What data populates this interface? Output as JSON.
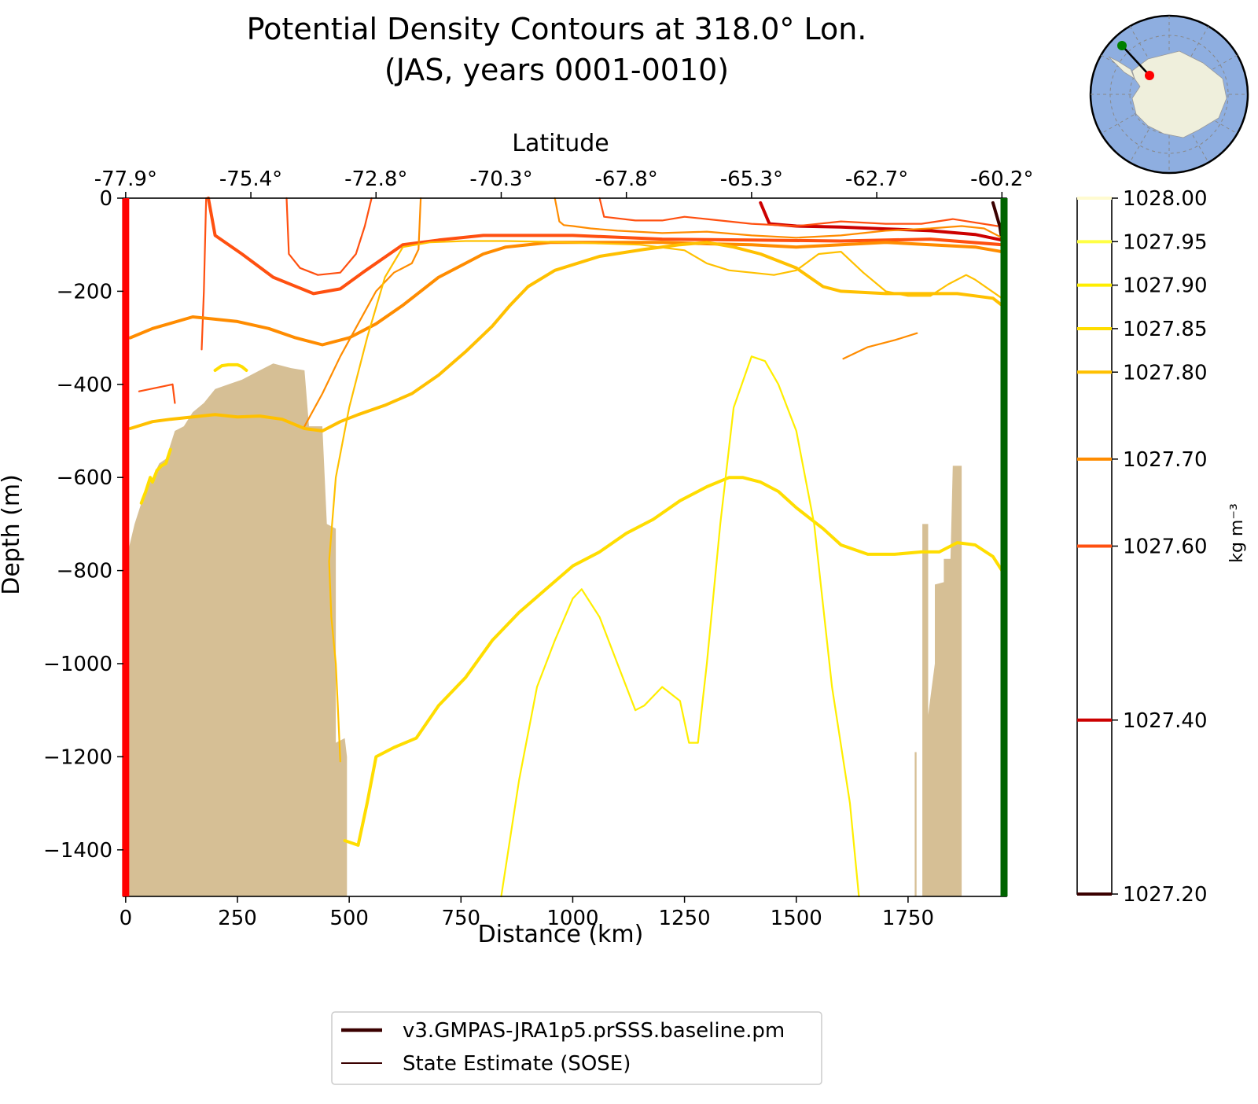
{
  "chart_data": {
    "type": "line",
    "title_line1": "Potential Density Contours at 318.0° Lon.",
    "title_line2": "(JAS, years 0001-0010)",
    "xlabel": "Distance (km)",
    "ylabel": "Depth (m)",
    "top_axis_label": "Latitude",
    "xlim": [
      -5,
      1970
    ],
    "ylim": [
      -1500,
      0
    ],
    "x_ticks": [
      0,
      250,
      500,
      750,
      1000,
      1250,
      1500,
      1750
    ],
    "x_tick_labels": [
      "0",
      "250",
      "500",
      "750",
      "1000",
      "1250",
      "1500",
      "1750"
    ],
    "y_ticks": [
      0,
      -200,
      -400,
      -600,
      -800,
      -1000,
      -1200,
      -1400
    ],
    "y_tick_labels": [
      "0",
      "−200",
      "−400",
      "−600",
      "−800",
      "−1000",
      "−1200",
      "−1400"
    ],
    "lat_ticks": [
      0,
      280,
      560,
      840,
      1120,
      1400,
      1680,
      1960
    ],
    "lat_tick_labels": [
      "-77.9°",
      "-75.4°",
      "-72.8°",
      "-70.3°",
      "-67.8°",
      "-65.3°",
      "-62.7°",
      "-60.2°"
    ],
    "colorbar": {
      "label": "kg m⁻³",
      "range": [
        1027.2,
        1028.0
      ],
      "levels": [
        {
          "value": 1028.0,
          "label": "1028.00",
          "color": "#fffbd0"
        },
        {
          "value": 1027.95,
          "label": "1027.95",
          "color": "#ffff44"
        },
        {
          "value": 1027.9,
          "label": "1027.90",
          "color": "#ffee00"
        },
        {
          "value": 1027.85,
          "label": "1027.85",
          "color": "#ffdd00"
        },
        {
          "value": 1027.8,
          "label": "1027.80",
          "color": "#ffc000"
        },
        {
          "value": 1027.7,
          "label": "1027.70",
          "color": "#ff8c00"
        },
        {
          "value": 1027.6,
          "label": "1027.60",
          "color": "#ff5010"
        },
        {
          "value": 1027.4,
          "label": "1027.40",
          "color": "#cc0000"
        },
        {
          "value": 1027.2,
          "label": "1027.20",
          "color": "#3a0000"
        }
      ]
    },
    "legend": {
      "placement": "below",
      "entries": [
        {
          "label": "v3.GMPAS-JRA1p5.prSSS.baseline.pm",
          "color": "#3a0000",
          "style": "thick"
        },
        {
          "label": "State Estimate (SOSE)",
          "color": "#3a0000",
          "style": "thin"
        }
      ]
    },
    "section_endpoints": {
      "start_color": "#ff0000",
      "end_color": "#006400"
    },
    "bathymetry": {
      "color": "#d6bf95",
      "left_mass": [
        [
          5,
          -1500
        ],
        [
          5,
          -760
        ],
        [
          20,
          -700
        ],
        [
          40,
          -640
        ],
        [
          60,
          -600
        ],
        [
          75,
          -570
        ],
        [
          90,
          -560
        ],
        [
          110,
          -500
        ],
        [
          130,
          -490
        ],
        [
          150,
          -460
        ],
        [
          175,
          -440
        ],
        [
          200,
          -410
        ],
        [
          230,
          -400
        ],
        [
          260,
          -390
        ],
        [
          300,
          -370
        ],
        [
          330,
          -355
        ],
        [
          370,
          -365
        ],
        [
          400,
          -370
        ],
        [
          410,
          -490
        ],
        [
          440,
          -490
        ],
        [
          450,
          -700
        ],
        [
          470,
          -710
        ],
        [
          470,
          -1170
        ],
        [
          490,
          -1160
        ],
        [
          495,
          -1200
        ],
        [
          495,
          -1500
        ]
      ],
      "right_mass": [
        [
          1782,
          -1500
        ],
        [
          1782,
          -700
        ],
        [
          1795,
          -700
        ],
        [
          1795,
          -1110
        ],
        [
          1810,
          -1000
        ],
        [
          1810,
          -830
        ],
        [
          1830,
          -825
        ],
        [
          1830,
          -775
        ],
        [
          1845,
          -775
        ],
        [
          1850,
          -575
        ],
        [
          1870,
          -575
        ],
        [
          1870,
          -1500
        ]
      ],
      "right_spike": [
        [
          1765,
          -1500
        ],
        [
          1765,
          -1190
        ],
        [
          1769,
          -1190
        ],
        [
          1769,
          -1500
        ]
      ]
    },
    "series": [
      {
        "value": 1027.2,
        "kind": "model",
        "x": [
          1940,
          1955,
          1960
        ],
        "y": [
          -10,
          -60,
          -90
        ]
      },
      {
        "value": 1027.4,
        "kind": "model",
        "x": [
          1420,
          1440,
          1500,
          1600,
          1700,
          1800,
          1900,
          1960
        ],
        "y": [
          -10,
          -55,
          -60,
          -62,
          -66,
          -70,
          -78,
          -90
        ]
      },
      {
        "value": 1027.6,
        "kind": "model",
        "x": [
          185,
          200,
          260,
          330,
          420,
          480,
          530,
          620,
          700,
          800,
          1000,
          1200,
          1400,
          1600,
          1800,
          1960
        ],
        "y": [
          0,
          -80,
          -120,
          -170,
          -205,
          -195,
          -160,
          -100,
          -90,
          -80,
          -80,
          -88,
          -90,
          -92,
          -88,
          -100
        ]
      },
      {
        "value": 1027.6,
        "kind": "sose",
        "x": [
          180,
          175,
          170
        ],
        "y": [
          0,
          -200,
          -325
        ]
      },
      {
        "value": 1027.6,
        "kind": "sose",
        "x": [
          30,
          80,
          105,
          110
        ],
        "y": [
          -415,
          -405,
          -400,
          -440
        ]
      },
      {
        "value": 1027.6,
        "kind": "sose",
        "x": [
          360,
          365,
          390,
          430,
          480,
          515,
          535,
          550
        ],
        "y": [
          0,
          -120,
          -150,
          -165,
          -160,
          -120,
          -60,
          0
        ]
      },
      {
        "value": 1027.6,
        "kind": "sose",
        "x": [
          1060,
          1070,
          1140,
          1200,
          1250,
          1300,
          1400,
          1500,
          1550,
          1600,
          1700,
          1780,
          1850,
          1950
        ],
        "y": [
          0,
          -40,
          -48,
          -48,
          -40,
          -45,
          -55,
          -60,
          -55,
          -50,
          -55,
          -55,
          -45,
          -60
        ]
      },
      {
        "value": 1027.7,
        "kind": "model",
        "x": [
          10,
          60,
          150,
          250,
          320,
          380,
          440,
          500,
          560,
          620,
          700,
          760,
          800,
          850,
          950,
          1050,
          1200,
          1300,
          1400,
          1500,
          1600,
          1700,
          1800,
          1900,
          1960
        ],
        "y": [
          -300,
          -280,
          -255,
          -265,
          -280,
          -300,
          -315,
          -300,
          -270,
          -230,
          -170,
          -140,
          -120,
          -105,
          -95,
          -95,
          -95,
          -98,
          -100,
          -105,
          -100,
          -95,
          -100,
          -105,
          -115
        ]
      },
      {
        "value": 1027.7,
        "kind": "sose",
        "x": [
          1770,
          1720,
          1660,
          1605
        ],
        "y": [
          -290,
          -305,
          -320,
          -345
        ]
      },
      {
        "value": 1027.7,
        "kind": "sose",
        "x": [
          660,
          655,
          640,
          600,
          560,
          520,
          480,
          440,
          400
        ],
        "y": [
          0,
          -110,
          -140,
          -160,
          -200,
          -270,
          -340,
          -420,
          -490
        ]
      },
      {
        "value": 1027.7,
        "kind": "sose",
        "x": [
          960,
          970,
          980,
          1000,
          1040,
          1100,
          1200,
          1300,
          1400,
          1500,
          1600,
          1700,
          1800,
          1870,
          1920,
          1960
        ],
        "y": [
          0,
          -50,
          -58,
          -60,
          -65,
          -70,
          -75,
          -72,
          -80,
          -85,
          -80,
          -70,
          -65,
          -60,
          -65,
          -85
        ]
      },
      {
        "value": 1027.8,
        "kind": "model",
        "x": [
          10,
          60,
          100,
          150,
          200,
          250,
          300,
          350,
          400,
          440,
          480,
          520,
          580,
          640,
          700,
          760,
          820,
          860,
          900,
          960,
          1060,
          1160,
          1240,
          1300,
          1360,
          1420,
          1500,
          1560,
          1600,
          1700,
          1800,
          1860,
          1900,
          1940,
          1960
        ],
        "y": [
          -495,
          -480,
          -475,
          -470,
          -465,
          -470,
          -468,
          -475,
          -495,
          -500,
          -480,
          -465,
          -445,
          -420,
          -380,
          -330,
          -275,
          -230,
          -190,
          -155,
          -125,
          -110,
          -100,
          -95,
          -105,
          -120,
          -150,
          -190,
          -200,
          -205,
          -205,
          -205,
          -210,
          -215,
          -230
        ]
      },
      {
        "value": 1027.8,
        "kind": "sose",
        "x": [
          480,
          475,
          470,
          460,
          455,
          470,
          500,
          540,
          580,
          620,
          680,
          760,
          850,
          950,
          1050,
          1150,
          1250,
          1300,
          1350,
          1400,
          1450,
          1500,
          1550,
          1600,
          1650,
          1700,
          1750,
          1800,
          1840,
          1880,
          1900,
          1960
        ],
        "y": [
          -1210,
          -1100,
          -1000,
          -900,
          -780,
          -600,
          -450,
          -300,
          -170,
          -105,
          -95,
          -92,
          -92,
          -94,
          -97,
          -100,
          -112,
          -140,
          -155,
          -160,
          -165,
          -155,
          -120,
          -115,
          -160,
          -200,
          -210,
          -210,
          -185,
          -165,
          -175,
          -215
        ]
      },
      {
        "value": 1027.85,
        "kind": "model",
        "x": [
          490,
          520,
          540,
          560,
          600,
          650,
          700,
          760,
          820,
          880,
          940,
          1000,
          1060,
          1120,
          1180,
          1240,
          1300,
          1350,
          1380,
          1420,
          1460,
          1500,
          1560,
          1600,
          1660,
          1720,
          1780,
          1820,
          1860,
          1900,
          1940,
          1960
        ],
        "y": [
          -1380,
          -1390,
          -1300,
          -1200,
          -1180,
          -1160,
          -1090,
          -1030,
          -950,
          -890,
          -840,
          -790,
          -760,
          -720,
          -690,
          -650,
          -620,
          -600,
          -600,
          -610,
          -630,
          -665,
          -710,
          -745,
          -765,
          -765,
          -760,
          -760,
          -740,
          -745,
          -770,
          -800
        ]
      },
      {
        "value": 1027.85,
        "kind": "model",
        "x": [
          35,
          45,
          55,
          60,
          70,
          80,
          90,
          100
        ],
        "y": [
          -655,
          -630,
          -600,
          -610,
          -585,
          -575,
          -570,
          -540
        ]
      },
      {
        "value": 1027.85,
        "kind": "model",
        "x": [
          200,
          215,
          230,
          250,
          260,
          270
        ],
        "y": [
          -370,
          -360,
          -358,
          -358,
          -362,
          -370
        ]
      },
      {
        "value": 1027.9,
        "kind": "sose",
        "x": [
          840,
          880,
          920,
          960,
          1000,
          1020,
          1060,
          1100,
          1140,
          1160,
          1200,
          1240,
          1260,
          1280,
          1300,
          1330,
          1360,
          1400,
          1430,
          1460,
          1500,
          1540,
          1580,
          1620,
          1640
        ],
        "y": [
          -1500,
          -1250,
          -1050,
          -950,
          -860,
          -840,
          -900,
          -1000,
          -1100,
          -1090,
          -1050,
          -1080,
          -1170,
          -1170,
          -1000,
          -700,
          -450,
          -340,
          -350,
          -400,
          -500,
          -700,
          -1050,
          -1300,
          -1500
        ]
      }
    ],
    "inset_map": {
      "start_marker": "#ff0000",
      "end_marker": "#008000",
      "ocean": "#8eaee0",
      "land": "#efefdc"
    }
  }
}
